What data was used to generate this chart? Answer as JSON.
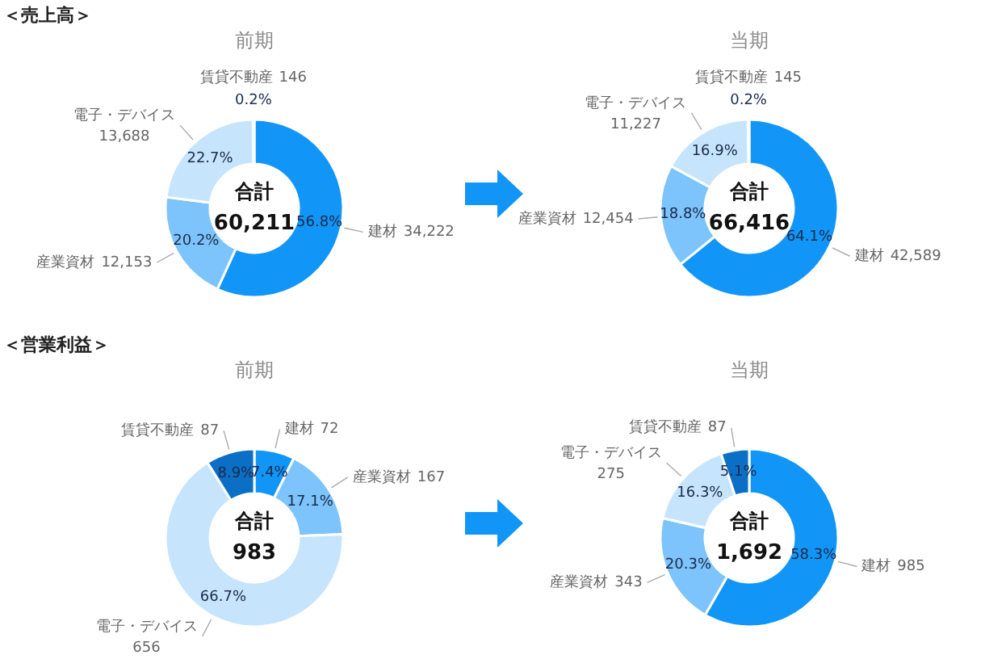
{
  "chart_data": [
    {
      "type": "donut",
      "subtitle": "＜売上高＞",
      "title": "前期",
      "categories": [
        "建材",
        "産業資材",
        "電子・デバイス",
        "賃貸不動産"
      ],
      "values": [
        34222,
        12153,
        13688,
        146
      ],
      "value_labels": [
        "34,222",
        "12,153",
        "13,688",
        "146"
      ],
      "colors": [
        "#1196f7",
        "#7cc4fb",
        "#c6e5fd",
        "#0b6fc6"
      ],
      "annotations": [
        "合計",
        "60,211",
        {
          "text": "56.8%",
          "x": "建材"
        },
        {
          "text": "20.2%",
          "x": "産業資材"
        },
        {
          "text": "22.7%",
          "x": "電子・デバイス"
        },
        {
          "text": "0.2%",
          "x": "賃貸不動産"
        }
      ]
    },
    {
      "type": "donut",
      "title": "当期",
      "categories": [
        "建材",
        "産業資材",
        "電子・デバイス",
        "賃貸不動産"
      ],
      "values": [
        42589,
        12454,
        11227,
        145
      ],
      "value_labels": [
        "42,589",
        "12,454",
        "11,227",
        "145"
      ],
      "colors": [
        "#1196f7",
        "#7cc4fb",
        "#c6e5fd",
        "#0b6fc6"
      ],
      "annotations": [
        "合計",
        "66,416",
        {
          "text": "64.1%",
          "x": "建材"
        },
        {
          "text": "18.8%",
          "x": "産業資材"
        },
        {
          "text": "16.9%",
          "x": "電子・デバイス"
        },
        {
          "text": "0.2%",
          "x": "賃貸不動産"
        }
      ]
    },
    {
      "type": "donut",
      "subtitle": "＜営業利益＞",
      "title": "前期",
      "categories": [
        "建材",
        "産業資材",
        "電子・デバイス",
        "賃貸不動産"
      ],
      "values": [
        72,
        167,
        656,
        87
      ],
      "value_labels": [
        "72",
        "167",
        "656",
        "87"
      ],
      "colors": [
        "#1196f7",
        "#7cc4fb",
        "#c6e5fd",
        "#0b6fc6"
      ],
      "annotations": [
        "合計",
        "983",
        {
          "text": "7.4%",
          "x": "建材"
        },
        {
          "text": "17.1%",
          "x": "産業資材"
        },
        {
          "text": "66.7%",
          "x": "電子・デバイス"
        },
        {
          "text": "8.9%",
          "x": "賃貸不動産"
        }
      ]
    },
    {
      "type": "donut",
      "title": "当期",
      "categories": [
        "建材",
        "産業資材",
        "電子・デバイス",
        "賃貸不動産"
      ],
      "values": [
        985,
        343,
        275,
        87
      ],
      "value_labels": [
        "985",
        "343",
        "275",
        "87"
      ],
      "colors": [
        "#1196f7",
        "#7cc4fb",
        "#c6e5fd",
        "#0b6fc6"
      ],
      "annotations": [
        "合計",
        "1,692",
        {
          "text": "58.3%",
          "x": "建材"
        },
        {
          "text": "20.3%",
          "x": "産業資材"
        },
        {
          "text": "16.3%",
          "x": "電子・デバイス"
        },
        {
          "text": "5.1%",
          "x": "賃貸不動産"
        }
      ]
    }
  ]
}
